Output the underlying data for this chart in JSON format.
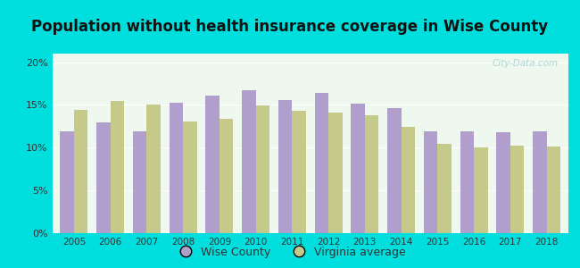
{
  "title": "Population without health insurance coverage in Wise County",
  "years": [
    2005,
    2006,
    2007,
    2008,
    2009,
    2010,
    2011,
    2012,
    2013,
    2014,
    2015,
    2016,
    2017,
    2018
  ],
  "wise_county": [
    11.9,
    13.0,
    11.9,
    15.3,
    16.1,
    16.7,
    15.6,
    16.4,
    15.2,
    14.6,
    11.9,
    11.9,
    11.8,
    11.9
  ],
  "virginia_avg": [
    14.4,
    15.5,
    15.0,
    13.1,
    13.4,
    14.9,
    14.3,
    14.1,
    13.8,
    12.4,
    10.5,
    10.0,
    10.2,
    10.1
  ],
  "wise_color": "#b09fcc",
  "va_color": "#c5c98a",
  "plot_bg_color": "#eef8ee",
  "yticks": [
    0,
    5,
    10,
    15,
    20
  ],
  "ytick_labels": [
    "0%",
    "5%",
    "10%",
    "15%",
    "20%"
  ],
  "legend_wise": "Wise County",
  "legend_va": "Virginia average",
  "watermark": "City-Data.com",
  "fig_bg": "#00dede",
  "title_fontsize": 12,
  "title_color": "#111111"
}
